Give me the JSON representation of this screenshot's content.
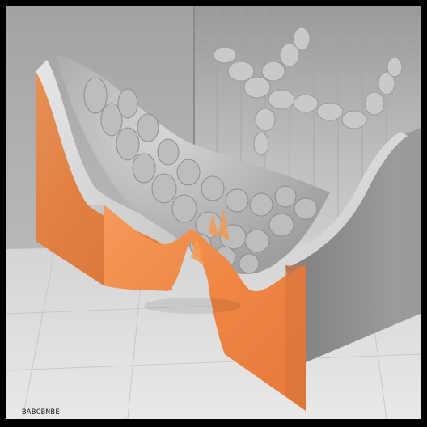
{
  "image": {
    "caption_text": "BABCBNBE",
    "colors": {
      "background_wall": "#b9b9b9",
      "floor": "#dedede",
      "block_face_orange": "#f0894a",
      "block_top": "#d9d9d9",
      "block_side_gray": "#8d8d8d",
      "rock_gray": "#b3b3b3",
      "frame": "#000000"
    }
  }
}
